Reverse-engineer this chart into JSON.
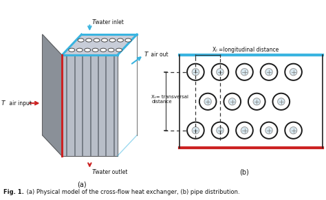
{
  "fig_width": 4.74,
  "fig_height": 2.91,
  "dpi": 100,
  "caption_bold": "Fig. 1.",
  "caption_rest": " (a) Physical model of the cross-flow heat exchanger, (b) pipe distribution.",
  "panel_a_label": "(a)",
  "panel_b_label": "(b)",
  "label_T_water_inlet": " water inlet",
  "label_T_water_outlet": " water outlet",
  "label_T_air_input": " air input",
  "label_T_air_out": " air out",
  "label_xl": "Xₗ =longitudinal distance",
  "label_xt": "Xₜ= transversal\ndistance",
  "box_top_color": "#3ab4e0",
  "box_bottom_color": "#cc2222",
  "arrow_blue_color": "#3ab4e0",
  "arrow_red_color": "#cc2222",
  "background": "#ffffff",
  "text_color": "#111111",
  "grey_face": "#b8bec8",
  "grey_left": "#8a9098",
  "grey_top": "#c8cdd8",
  "grey_dark": "#707880",
  "pipe_light_fill": "#d8e8f0",
  "pipe_border": "#1a1a1a"
}
